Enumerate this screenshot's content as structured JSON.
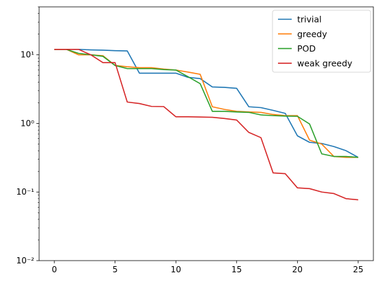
{
  "chart_data": {
    "type": "line",
    "title": "",
    "xlabel": "",
    "ylabel": "",
    "xlim": [
      -1.25,
      26.25
    ],
    "ylim": [
      0.01,
      50
    ],
    "yscale": "log",
    "grid": false,
    "legend_position": "top-right",
    "x_ticks": [
      0,
      5,
      10,
      15,
      20,
      25
    ],
    "x_tick_labels": [
      "0",
      "5",
      "10",
      "15",
      "20",
      "25"
    ],
    "y_ticks": [
      0.01,
      0.1,
      1,
      10
    ],
    "y_tick_labels": [
      "10⁻²",
      "10⁻¹",
      "10⁰",
      "10¹"
    ],
    "x": [
      0,
      1,
      2,
      3,
      4,
      5,
      6,
      7,
      8,
      9,
      10,
      11,
      12,
      13,
      14,
      15,
      16,
      17,
      18,
      19,
      20,
      21,
      22,
      23,
      24,
      25
    ],
    "series": [
      {
        "name": "trivial",
        "color": "#1f77b4",
        "values": [
          12,
          12,
          12,
          11.8,
          11.7,
          11.5,
          11.4,
          5.4,
          5.4,
          5.4,
          5.4,
          4.7,
          4.5,
          3.4,
          3.35,
          3.25,
          1.75,
          1.7,
          1.55,
          1.4,
          0.66,
          0.53,
          0.51,
          0.46,
          0.4,
          0.32
        ]
      },
      {
        "name": "greedy",
        "color": "#ff7f0e",
        "values": [
          12,
          12,
          10,
          10,
          9.7,
          7.0,
          6.7,
          6.5,
          6.5,
          6.2,
          6.0,
          5.6,
          5.2,
          1.75,
          1.6,
          1.5,
          1.47,
          1.45,
          1.35,
          1.3,
          1.3,
          0.57,
          0.5,
          0.33,
          0.32,
          0.32
        ]
      },
      {
        "name": "POD",
        "color": "#2ca02c",
        "values": [
          12,
          12,
          10.5,
          10,
          9.5,
          7.0,
          6.3,
          6.3,
          6.3,
          6.1,
          6.0,
          4.8,
          3.8,
          1.5,
          1.5,
          1.47,
          1.45,
          1.33,
          1.3,
          1.28,
          1.27,
          0.98,
          0.36,
          0.33,
          0.33,
          0.32
        ]
      },
      {
        "name": "weak greedy",
        "color": "#d62728",
        "values": [
          12,
          12,
          12,
          10,
          7.7,
          7.7,
          2.05,
          1.95,
          1.77,
          1.76,
          1.25,
          1.25,
          1.24,
          1.23,
          1.18,
          1.12,
          0.74,
          0.62,
          0.19,
          0.185,
          0.115,
          0.112,
          0.1,
          0.095,
          0.08,
          0.077
        ]
      }
    ]
  }
}
